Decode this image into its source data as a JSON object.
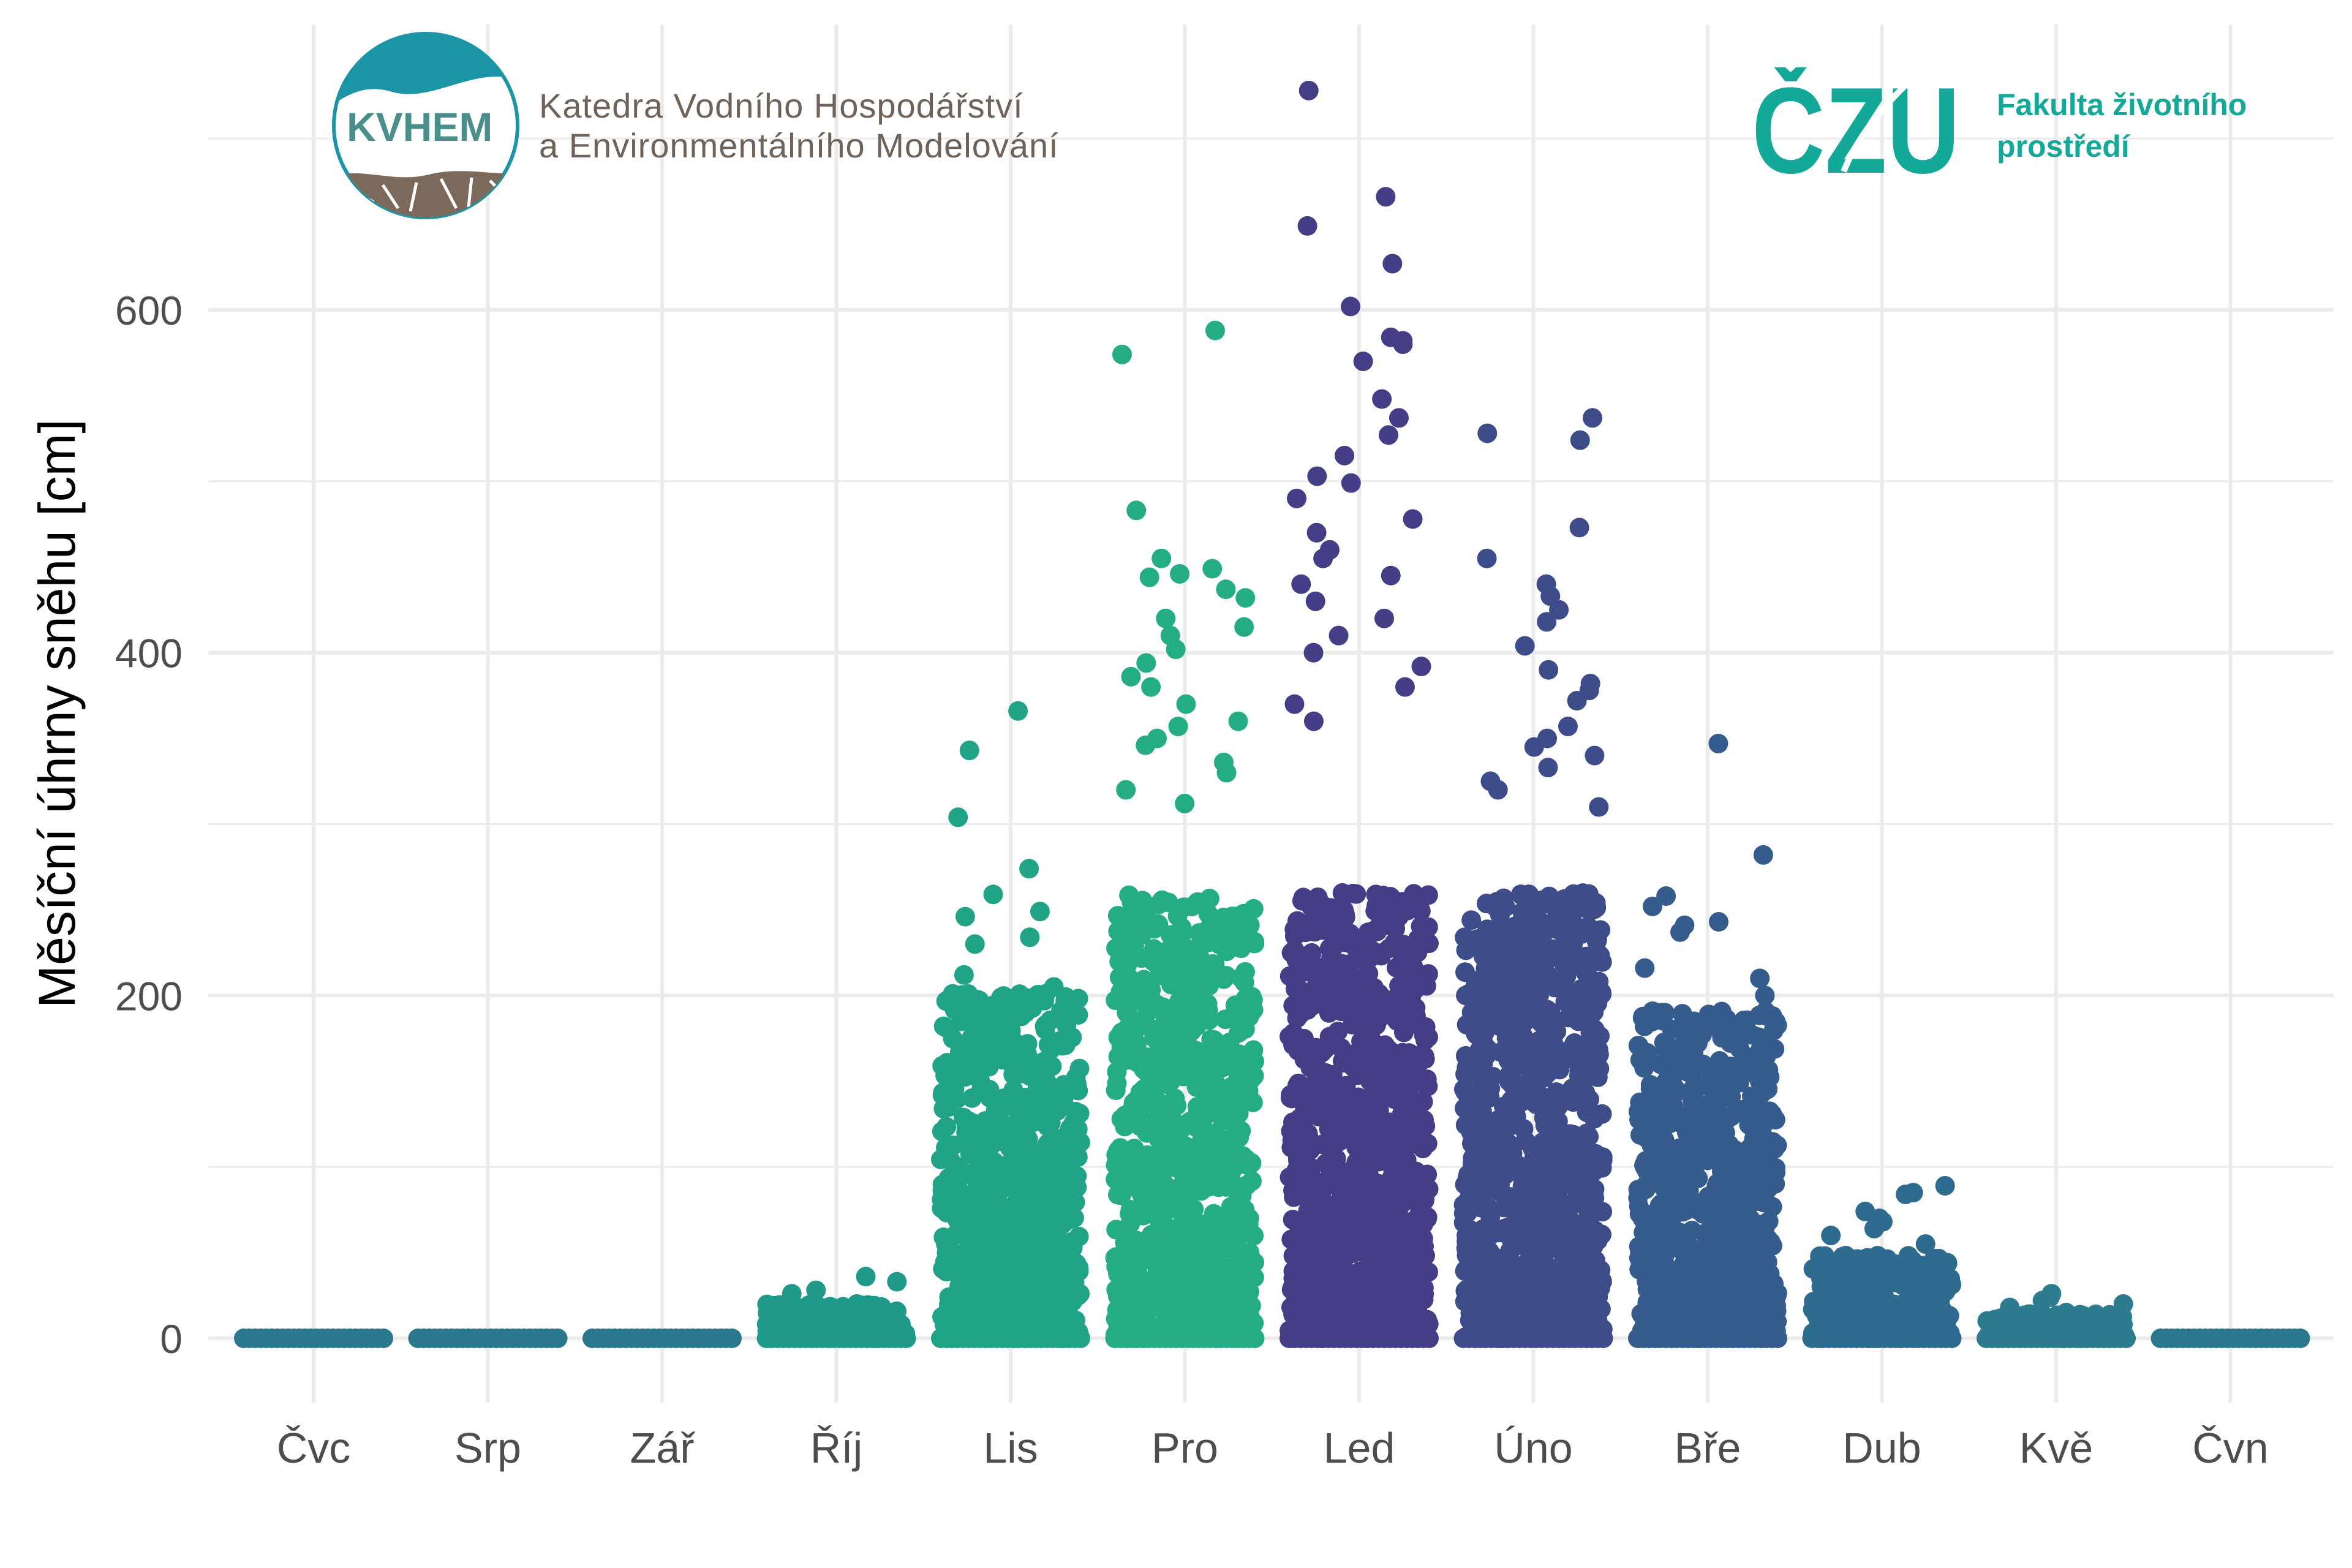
{
  "chart_data": {
    "type": "scatter",
    "title": "",
    "xlabel": "",
    "ylabel": "Měsíční úhrny sněhu [cm]",
    "ylim": [
      -35,
      770
    ],
    "yticks": [
      0,
      200,
      400,
      600
    ],
    "grid": true,
    "legend": "none",
    "categories": [
      "Čvc",
      "Srp",
      "Zář",
      "Říj",
      "Lis",
      "Pro",
      "Led",
      "Úno",
      "Bře",
      "Dub",
      "Kvě",
      "Čvn"
    ],
    "colors": [
      "#2a788e",
      "#2a788e",
      "#2a788e",
      "#1f9a8a",
      "#20a386",
      "#24ad84",
      "#433e85",
      "#3e4c8a",
      "#365c8d",
      "#2f6b8e",
      "#2c7b8e",
      "#2a788e"
    ],
    "max_values": [
      0,
      0,
      0,
      36,
      366,
      588,
      728,
      537,
      347,
      89,
      26,
      0
    ],
    "outliers": [
      {
        "month": "Říj",
        "values": [
          28,
          26,
          36,
          33,
          20,
          18,
          15
        ]
      },
      {
        "month": "Lis",
        "values": [
          366,
          343,
          304,
          274,
          259,
          249,
          246,
          230,
          234,
          212,
          205,
          197,
          198,
          190,
          185,
          172
        ]
      },
      {
        "month": "Pro",
        "values": [
          588,
          574,
          483,
          455,
          449,
          446,
          444,
          437,
          432,
          420,
          415,
          410,
          402,
          394,
          386,
          380,
          370,
          360,
          357,
          350,
          346,
          336,
          330,
          320,
          312
        ]
      },
      {
        "month": "Led",
        "values": [
          728,
          666,
          649,
          627,
          602,
          584,
          582,
          580,
          570,
          548,
          537,
          527,
          515,
          503,
          499,
          490,
          478,
          470,
          460,
          455,
          445,
          440,
          430,
          420,
          410,
          400,
          392,
          380,
          370,
          360
        ]
      },
      {
        "month": "Úno",
        "values": [
          537,
          528,
          524,
          473,
          455,
          440,
          433,
          425,
          418,
          404,
          390,
          382,
          378,
          372,
          357,
          350,
          345,
          340,
          333,
          325,
          320,
          310
        ]
      },
      {
        "month": "Bře",
        "values": [
          347,
          282,
          258,
          252,
          243,
          241,
          237,
          216,
          210,
          200,
          190,
          182,
          178,
          172
        ]
      },
      {
        "month": "Dub",
        "values": [
          89,
          85,
          84,
          74,
          70,
          68,
          64,
          60,
          55
        ]
      },
      {
        "month": "Kvě",
        "values": [
          26,
          24,
          22,
          20,
          18,
          15
        ]
      }
    ]
  },
  "logos": {
    "kvhem": {
      "text": "KVHEM",
      "line1": "Katedra Vodního Hospodářství",
      "line2": "a Environmentálního Modelování"
    },
    "czu": {
      "text": "ČZU",
      "line1": "Fakulta životního",
      "line2": "prostředí"
    }
  }
}
